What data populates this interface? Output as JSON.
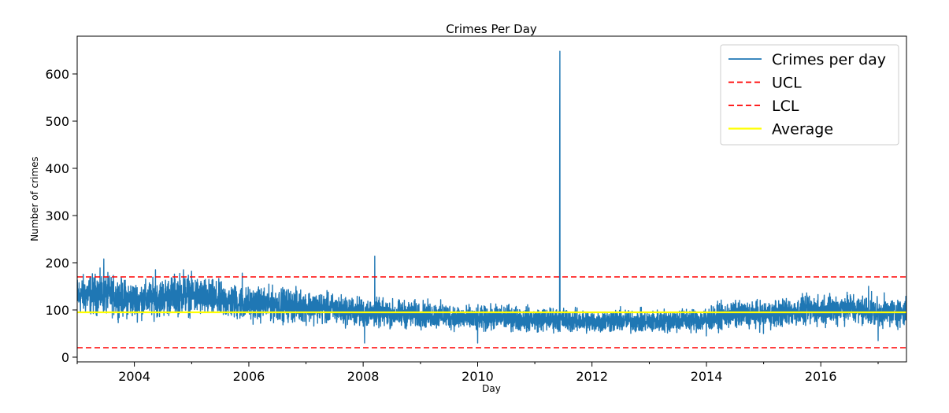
{
  "chart_data": {
    "type": "line",
    "title": "Crimes Per Day",
    "xlabel": "Day",
    "ylabel": "Number of crimes",
    "xlim": [
      "2003-01-01",
      "2017-07-01"
    ],
    "ylim": [
      -10,
      680
    ],
    "x_ticks": [
      "2004",
      "2006",
      "2008",
      "2010",
      "2012",
      "2014",
      "2016"
    ],
    "y_ticks": [
      0,
      100,
      200,
      300,
      400,
      500,
      600
    ],
    "grid": false,
    "legend_position": "top-right",
    "series": [
      {
        "name": "Crimes per day",
        "color": "#1f77b4",
        "style": "solid",
        "x_start": "2003-01-01",
        "x_end": "2017-07-01",
        "x_interval": "1 day",
        "baseline_anchors": [
          [
            "2003-01-01",
            130
          ],
          [
            "2003-06-01",
            135
          ],
          [
            "2004-01-01",
            120
          ],
          [
            "2004-06-01",
            125
          ],
          [
            "2004-11-01",
            135
          ],
          [
            "2005-06-01",
            122
          ],
          [
            "2006-01-01",
            112
          ],
          [
            "2006-06-01",
            112
          ],
          [
            "2007-01-01",
            108
          ],
          [
            "2007-06-01",
            102
          ],
          [
            "2008-01-01",
            95
          ],
          [
            "2008-06-01",
            92
          ],
          [
            "2009-01-01",
            90
          ],
          [
            "2009-06-01",
            88
          ],
          [
            "2010-01-01",
            80
          ],
          [
            "2010-06-01",
            85
          ],
          [
            "2011-01-01",
            80
          ],
          [
            "2011-06-01",
            80
          ],
          [
            "2012-01-01",
            75
          ],
          [
            "2012-06-01",
            78
          ],
          [
            "2013-01-01",
            75
          ],
          [
            "2013-06-01",
            78
          ],
          [
            "2014-01-01",
            80
          ],
          [
            "2014-06-01",
            90
          ],
          [
            "2015-01-01",
            90
          ],
          [
            "2015-06-01",
            95
          ],
          [
            "2016-01-01",
            100
          ],
          [
            "2016-06-01",
            105
          ],
          [
            "2017-01-01",
            95
          ],
          [
            "2017-07-01",
            95
          ]
        ],
        "spikes": [
          [
            "2003-06-20",
            208
          ],
          [
            "2004-05-15",
            185
          ],
          [
            "2004-11-10",
            185
          ],
          [
            "2005-01-01",
            170
          ],
          [
            "2005-11-20",
            178
          ],
          [
            "2008-03-15",
            214
          ],
          [
            "2008-01-10",
            30
          ],
          [
            "2010-01-01",
            30
          ],
          [
            "2011-06-10",
            648
          ],
          [
            "2011-06-09",
            510
          ],
          [
            "2013-12-31",
            45
          ],
          [
            "2014-12-31",
            50
          ],
          [
            "2016-11-01",
            150
          ],
          [
            "2017-01-01",
            35
          ]
        ]
      },
      {
        "name": "UCL",
        "color": "#ff0000",
        "style": "dashed",
        "value": 170
      },
      {
        "name": "LCL",
        "color": "#ff0000",
        "style": "dashed",
        "value": 20
      },
      {
        "name": "Average",
        "color": "#ffff00",
        "style": "solid",
        "value": 95
      }
    ]
  }
}
